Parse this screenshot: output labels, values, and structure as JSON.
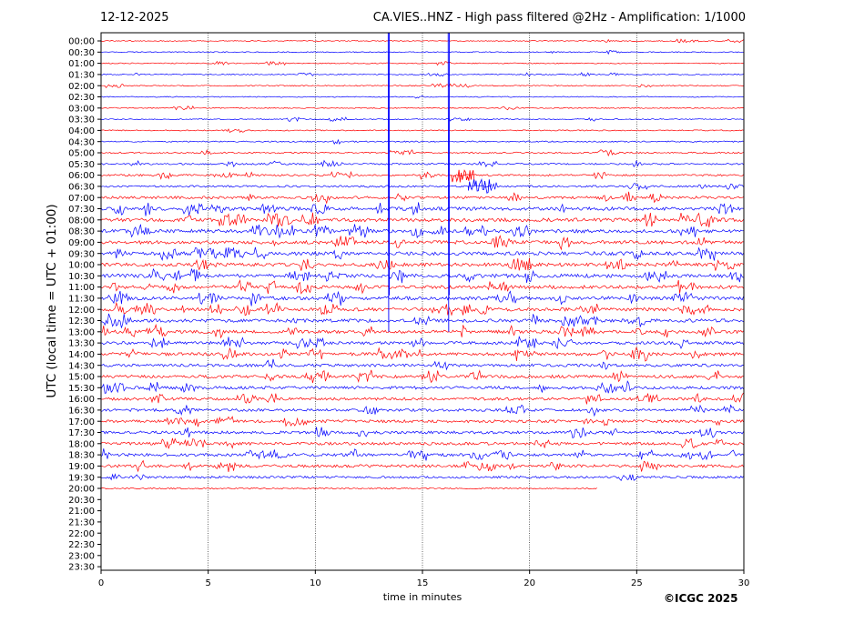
{
  "header": {
    "date": "12-12-2025",
    "title": "CA.VIES..HNZ - High pass filtered @2Hz - Amplification: 1/1000"
  },
  "footer": {
    "copyright": "©ICGC 2025"
  },
  "chart_data": {
    "type": "line",
    "title": "CA.VIES..HNZ - High pass filtered @2Hz - Amplification: 1/1000",
    "xlabel": "time in minutes",
    "ylabel": "UTC (local time = UTC + 01:00)",
    "xlim": [
      0,
      30
    ],
    "xticks": [
      "0",
      "5",
      "10",
      "15",
      "20",
      "25",
      "30"
    ],
    "grid": "vertical dotted lines at every 5 minutes",
    "row_labels": [
      "00:00",
      "00:30",
      "01:00",
      "01:30",
      "02:00",
      "02:30",
      "03:00",
      "03:30",
      "04:00",
      "04:30",
      "05:00",
      "05:30",
      "06:00",
      "06:30",
      "07:00",
      "07:30",
      "08:00",
      "08:30",
      "09:00",
      "09:30",
      "10:00",
      "10:30",
      "11:00",
      "11:30",
      "12:00",
      "12:30",
      "13:00",
      "13:30",
      "14:00",
      "14:30",
      "15:00",
      "15:30",
      "16:00",
      "16:30",
      "17:00",
      "17:30",
      "18:00",
      "18:30",
      "19:00",
      "19:30",
      "20:00",
      "20:30",
      "21:00",
      "21:30",
      "22:00",
      "22:30",
      "23:00",
      "23:30"
    ],
    "trace_colors": [
      "#ff0000",
      "#0000ff"
    ],
    "trace_color_order": "00:00 red, 00:30 blue, alternating",
    "recorded_rows": 41,
    "last_row_end_minute": 23.2,
    "activity": [
      0.12,
      0.12,
      0.12,
      0.13,
      0.13,
      0.13,
      0.13,
      0.14,
      0.16,
      0.22,
      0.28,
      0.35,
      0.4,
      0.45,
      0.7,
      0.95,
      1.0,
      1.0,
      0.95,
      1.0,
      0.95,
      1.0,
      0.95,
      1.0,
      0.9,
      0.9,
      0.85,
      0.8,
      0.85,
      0.75,
      0.8,
      0.8,
      0.75,
      0.7,
      0.75,
      0.75,
      0.75,
      0.75,
      0.75,
      0.55,
      0.25
    ],
    "events": [
      {
        "row": "03:00",
        "minute": 13.4,
        "note": "large spike spanning many rows"
      },
      {
        "row": "03:00",
        "minute": 16.2,
        "note": "large spike spanning many rows"
      },
      {
        "row": "06:00",
        "minute": 16.6,
        "note": "strong burst"
      },
      {
        "row": "06:30",
        "minute": 17.4,
        "note": "strong burst"
      }
    ]
  }
}
